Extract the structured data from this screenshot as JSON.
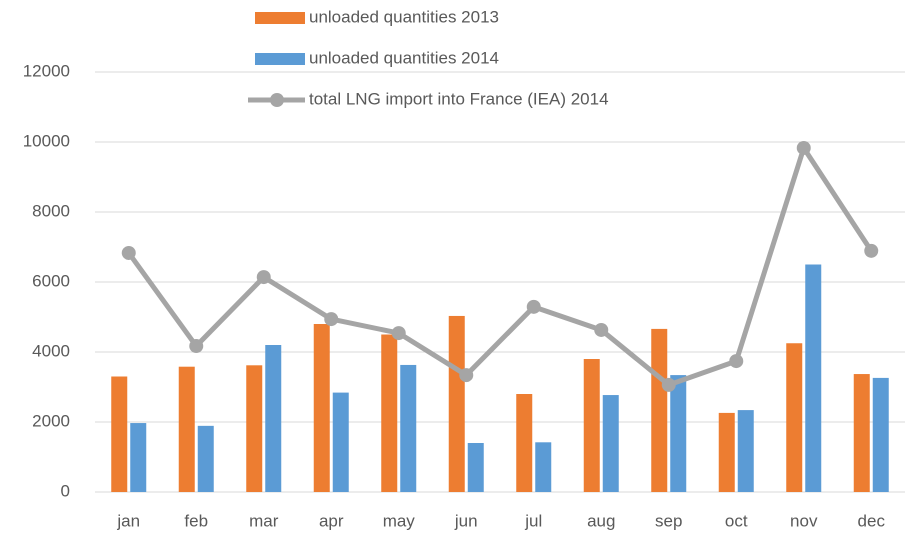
{
  "chart_data": {
    "type": "bar_line",
    "categories": [
      "jan",
      "feb",
      "mar",
      "apr",
      "may",
      "jun",
      "jul",
      "aug",
      "sep",
      "oct",
      "nov",
      "dec"
    ],
    "series": [
      {
        "name": "unloaded quantities 2013",
        "type": "bar",
        "color": "#ed7d31",
        "values": [
          3300,
          3580,
          3620,
          4800,
          4500,
          5030,
          2800,
          3800,
          4660,
          2260,
          4250,
          3370
        ]
      },
      {
        "name": "unloaded quantities 2014",
        "type": "bar",
        "color": "#5b9bd5",
        "values": [
          1970,
          1890,
          4200,
          2840,
          3630,
          1400,
          1420,
          2770,
          3340,
          2340,
          6500,
          3260
        ]
      },
      {
        "name": "total LNG import into France (IEA) 2014",
        "type": "line",
        "color": "#a5a5a5",
        "values": [
          6830,
          4170,
          6140,
          4940,
          4540,
          3340,
          5290,
          4630,
          3060,
          3740,
          9830,
          6890
        ]
      }
    ],
    "ylim": [
      0,
      12000
    ],
    "yticks": [
      0,
      2000,
      4000,
      6000,
      8000,
      10000,
      12000
    ],
    "grid": true
  }
}
